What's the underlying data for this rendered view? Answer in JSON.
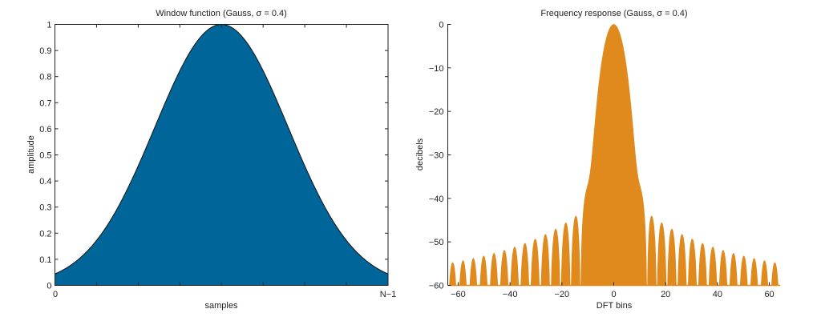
{
  "chart_data": [
    {
      "type": "area",
      "title": "Window function (Gauss, σ = 0.4)",
      "xlabel": "samples",
      "ylabel": "amplitude",
      "window": "Gauss",
      "sigma": 0.4,
      "xlim": [
        0,
        1
      ],
      "ylim": [
        0,
        1
      ],
      "x_tick_labels": [
        "0",
        "N−1"
      ],
      "y_ticks": [
        0,
        0.1,
        0.2,
        0.3,
        0.4,
        0.5,
        0.6,
        0.7,
        0.8,
        0.9,
        1
      ],
      "y_tick_labels": [
        "0",
        "0.1",
        "0.2",
        "0.3",
        "0.4",
        "0.5",
        "0.6",
        "0.7",
        "0.8",
        "0.9",
        "1"
      ],
      "edge_value": 0.044,
      "peak_value": 1,
      "color": "#006699",
      "grid": false
    },
    {
      "type": "area",
      "title": "Frequency response (Gauss, σ = 0.4)",
      "xlabel": "DFT bins",
      "ylabel": "decibels",
      "xlim": [
        -64,
        64
      ],
      "ylim": [
        -60,
        0
      ],
      "x_ticks": [
        -60,
        -40,
        -20,
        0,
        20,
        40,
        60
      ],
      "x_tick_labels": [
        "−60",
        "−40",
        "−20",
        "0",
        "20",
        "40",
        "60"
      ],
      "y_ticks": [
        0,
        -10,
        -20,
        -30,
        -40,
        -50,
        -60
      ],
      "y_tick_labels": [
        "0",
        "−10",
        "−20",
        "−30",
        "−40",
        "−50",
        "−60"
      ],
      "peak_db": 0,
      "first_sidelobe_db": -44,
      "sidelobe_extent_bins": [
        -28,
        28
      ],
      "color": "#e08a1e",
      "grid": false
    }
  ]
}
